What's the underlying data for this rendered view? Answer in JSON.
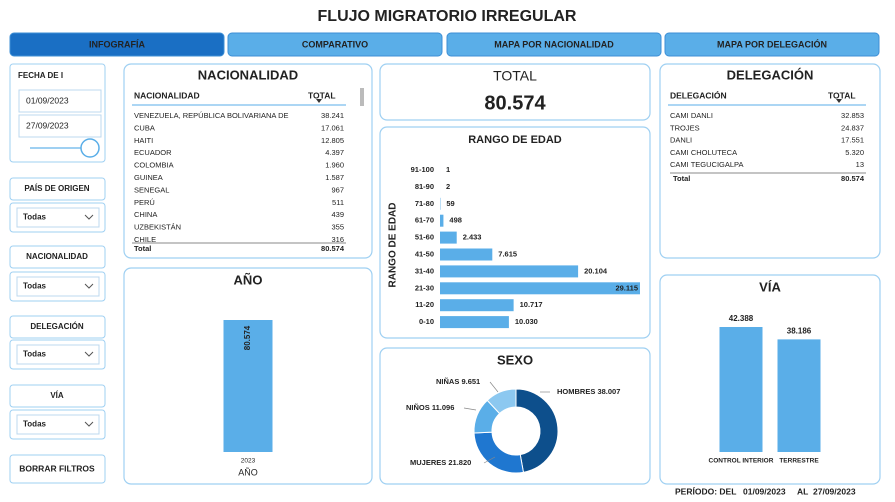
{
  "title": "FLUJO MIGRATORIO IRREGULAR",
  "tabs": [
    "INFOGRAFÍA",
    "COMPARATIVO",
    "MAPA POR NACIONALIDAD",
    "MAPA POR DELEGACIÓN"
  ],
  "date_filter": {
    "label": "FECHA DE I",
    "start": "01/09/2023",
    "end": "27/09/2023"
  },
  "slicers": [
    {
      "label": "PAÍS DE ORIGEN",
      "value": "Todas"
    },
    {
      "label": "NACIONALIDAD",
      "value": "Todas"
    },
    {
      "label": "DELEGACIÓN",
      "value": "Todas"
    },
    {
      "label": "VÍA",
      "value": "Todas"
    }
  ],
  "clear_button": "BORRAR FILTROS",
  "nationality_table": {
    "title": "NACIONALIDAD",
    "headers": [
      "NACIONALIDAD",
      "TOTAL"
    ],
    "rows": [
      [
        "VENEZUELA, REPÚBLICA BOLIVARIANA DE",
        "38.241"
      ],
      [
        "CUBA",
        "17.061"
      ],
      [
        "HAITI",
        "12.805"
      ],
      [
        "ECUADOR",
        "4.397"
      ],
      [
        "COLOMBIA",
        "1.960"
      ],
      [
        "GUINEA",
        "1.587"
      ],
      [
        "SENEGAL",
        "967"
      ],
      [
        "PERÚ",
        "511"
      ],
      [
        "CHINA",
        "439"
      ],
      [
        "UZBEKISTÁN",
        "355"
      ],
      [
        "CHILE",
        "316"
      ]
    ],
    "total": [
      "Total",
      "80.574"
    ]
  },
  "total_card": {
    "title": "TOTAL",
    "value": "80.574"
  },
  "delegation_table": {
    "title": "DELEGACIÓN",
    "headers": [
      "DELEGACIÓN",
      "TOTAL"
    ],
    "rows": [
      [
        "CAMI DANLI",
        "32.853"
      ],
      [
        "TROJES",
        "24.837"
      ],
      [
        "DANLI",
        "17.551"
      ],
      [
        "CAMI CHOLUTECA",
        "5.320"
      ],
      [
        "CAMI TEGUCIGALPA",
        "13"
      ]
    ],
    "total": [
      "Total",
      "80.574"
    ]
  },
  "chart_data": [
    {
      "type": "bar",
      "title": "AÑO",
      "x_label": "AÑO",
      "categories": [
        "2023"
      ],
      "values": [
        80574
      ],
      "value_labels": [
        "80.574"
      ],
      "color": "#5aaee8",
      "label_rotated": true
    },
    {
      "type": "hbar",
      "title": "RANGO DE EDAD",
      "y_label": "RANGO DE EDAD",
      "categories": [
        "91-100",
        "81-90",
        "71-80",
        "61-70",
        "51-60",
        "41-50",
        "31-40",
        "21-30",
        "11-20",
        "0-10"
      ],
      "values": [
        1,
        2,
        59,
        498,
        2433,
        7615,
        20104,
        29115,
        10717,
        10030
      ],
      "value_labels": [
        "1",
        "2",
        "59",
        "498",
        "2.433",
        "7.615",
        "20.104",
        "29.115",
        "10.717",
        "10.030"
      ],
      "color": "#5aaee8"
    },
    {
      "type": "donut",
      "title": "SEXO",
      "categories": [
        "HOMBRES",
        "MUJERES",
        "NIÑOS",
        "NIÑAS"
      ],
      "values": [
        38007,
        21820,
        11096,
        9651
      ],
      "value_labels": [
        "38.007",
        "21.820",
        "11.096",
        "9.651"
      ],
      "colors": [
        "#0d4f8c",
        "#1f77d0",
        "#5aaee8",
        "#8cc8f0"
      ]
    },
    {
      "type": "bar",
      "title": "VÍA",
      "categories": [
        "CONTROL INTERIOR",
        "TERRESTRE"
      ],
      "values": [
        42388,
        38186
      ],
      "value_labels": [
        "42.388",
        "38.186"
      ],
      "color": "#5aaee8"
    }
  ],
  "period": {
    "label": "PERÍODO: DEL",
    "start": "01/09/2023",
    "joiner": "AL",
    "end": "27/09/2023"
  }
}
